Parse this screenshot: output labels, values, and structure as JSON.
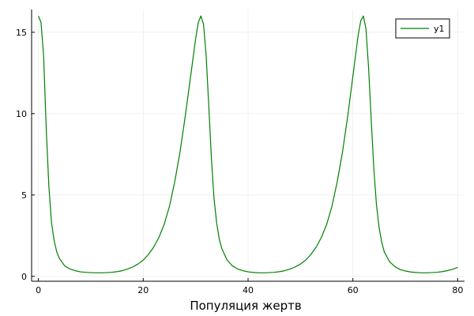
{
  "chart_data": {
    "type": "line",
    "title": "",
    "xlabel": "Популяция жертв",
    "ylabel": "",
    "xlim": [
      -1.3,
      81.3
    ],
    "ylim": [
      -0.3,
      16.4
    ],
    "grid": true,
    "legend_position": "top-right",
    "x_ticks": [
      0,
      20,
      40,
      60,
      80
    ],
    "y_ticks": [
      0,
      5,
      10,
      15
    ],
    "series": [
      {
        "name": "y1",
        "color": "#008000",
        "points": [
          [
            0,
            16.0
          ],
          [
            0.5,
            15.6
          ],
          [
            1,
            13.5
          ],
          [
            1.5,
            9.0
          ],
          [
            2,
            5.5
          ],
          [
            2.5,
            3.3
          ],
          [
            3,
            2.2
          ],
          [
            3.5,
            1.5
          ],
          [
            4,
            1.1
          ],
          [
            5,
            0.65
          ],
          [
            6,
            0.45
          ],
          [
            7,
            0.35
          ],
          [
            8,
            0.28
          ],
          [
            9,
            0.25
          ],
          [
            10,
            0.23
          ],
          [
            11,
            0.22
          ],
          [
            12,
            0.22
          ],
          [
            13,
            0.23
          ],
          [
            14,
            0.25
          ],
          [
            15,
            0.29
          ],
          [
            16,
            0.35
          ],
          [
            17,
            0.45
          ],
          [
            18,
            0.58
          ],
          [
            19,
            0.76
          ],
          [
            20,
            1.0
          ],
          [
            21,
            1.35
          ],
          [
            22,
            1.8
          ],
          [
            23,
            2.4
          ],
          [
            24,
            3.2
          ],
          [
            25,
            4.3
          ],
          [
            26,
            5.8
          ],
          [
            27,
            7.6
          ],
          [
            28,
            9.8
          ],
          [
            29,
            12.2
          ],
          [
            30,
            14.6
          ],
          [
            30.5,
            15.6
          ],
          [
            31,
            16.0
          ],
          [
            31.5,
            15.5
          ],
          [
            32,
            13.6
          ],
          [
            32.5,
            10.5
          ],
          [
            33,
            7.3
          ],
          [
            33.5,
            4.8
          ],
          [
            34,
            3.3
          ],
          [
            34.5,
            2.3
          ],
          [
            35,
            1.7
          ],
          [
            36,
            1.0
          ],
          [
            37,
            0.65
          ],
          [
            38,
            0.45
          ],
          [
            39,
            0.35
          ],
          [
            40,
            0.28
          ],
          [
            41,
            0.24
          ],
          [
            42,
            0.22
          ],
          [
            43,
            0.22
          ],
          [
            44,
            0.23
          ],
          [
            45,
            0.25
          ],
          [
            46,
            0.29
          ],
          [
            47,
            0.35
          ],
          [
            48,
            0.45
          ],
          [
            49,
            0.58
          ],
          [
            50,
            0.76
          ],
          [
            51,
            1.0
          ],
          [
            52,
            1.35
          ],
          [
            53,
            1.8
          ],
          [
            54,
            2.4
          ],
          [
            55,
            3.2
          ],
          [
            56,
            4.3
          ],
          [
            57,
            5.8
          ],
          [
            58,
            7.6
          ],
          [
            59,
            9.8
          ],
          [
            60,
            12.3
          ],
          [
            61,
            14.8
          ],
          [
            61.5,
            15.7
          ],
          [
            62,
            16.0
          ],
          [
            62.5,
            15.2
          ],
          [
            63,
            12.8
          ],
          [
            63.5,
            9.6
          ],
          [
            64,
            6.6
          ],
          [
            64.5,
            4.4
          ],
          [
            65,
            3.0
          ],
          [
            65.5,
            2.1
          ],
          [
            66,
            1.5
          ],
          [
            67,
            0.9
          ],
          [
            68,
            0.6
          ],
          [
            69,
            0.42
          ],
          [
            70,
            0.33
          ],
          [
            71,
            0.27
          ],
          [
            72,
            0.24
          ],
          [
            73,
            0.22
          ],
          [
            74,
            0.22
          ],
          [
            75,
            0.23
          ],
          [
            76,
            0.25
          ],
          [
            77,
            0.29
          ],
          [
            78,
            0.35
          ],
          [
            79,
            0.43
          ],
          [
            80,
            0.55
          ]
        ]
      }
    ]
  }
}
